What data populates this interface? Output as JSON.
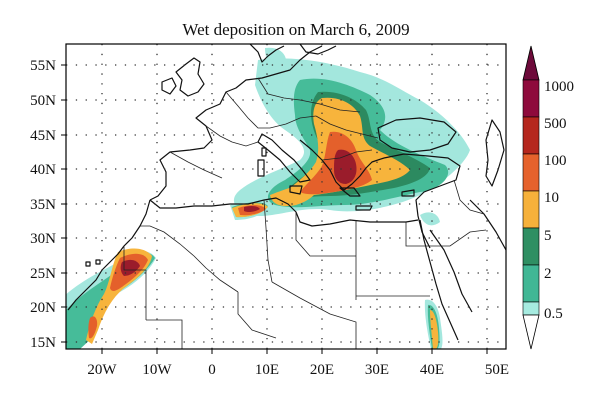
{
  "title": "Wet deposition on March 6, 2009",
  "lat_ticks": [
    "55N",
    "50N",
    "45N",
    "40N",
    "35N",
    "30N",
    "25N",
    "20N",
    "15N"
  ],
  "lon_ticks": [
    "20W",
    "10W",
    "0",
    "10E",
    "20E",
    "30E",
    "40E",
    "50E"
  ],
  "colorbar": {
    "labels": [
      "1000",
      "500",
      "100",
      "10",
      "5",
      "2",
      "0.5"
    ],
    "colors": [
      "#8e0a3c",
      "#b5271e",
      "#e5622c",
      "#f6b13b",
      "#2f8f63",
      "#41b795",
      "#a6ebe0"
    ]
  },
  "colors": {
    "coastline": "#111111",
    "border": "#222222",
    "grid": "#333333"
  }
}
